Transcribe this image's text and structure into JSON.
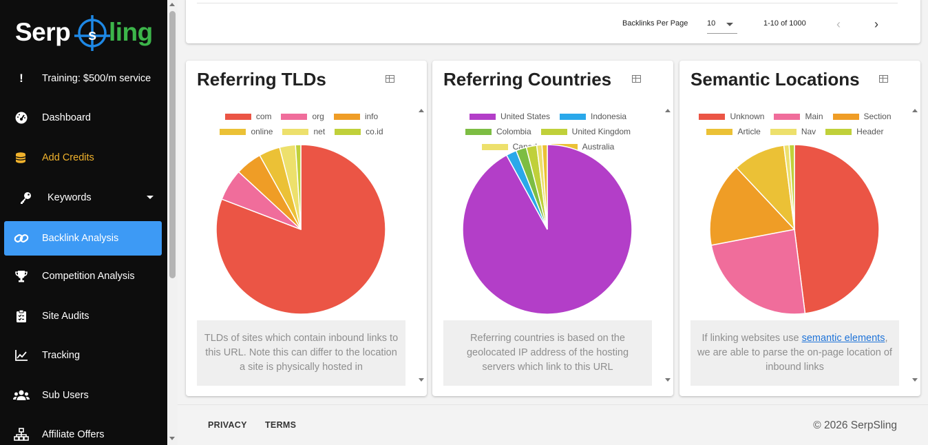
{
  "brand": {
    "logo_left": "Serp",
    "logo_mid": "s",
    "logo_right": "ling",
    "colors": {
      "white": "#ffffff",
      "blue": "#1e88e5",
      "green": "#3cb54a"
    }
  },
  "sidebar": {
    "items": [
      {
        "label": "Training: $500/m service",
        "icon": "exclamation-icon"
      },
      {
        "label": "Dashboard",
        "icon": "speedometer-icon"
      },
      {
        "label": "Add Credits",
        "icon": "coins-icon"
      },
      {
        "label": "Keywords",
        "icon": "key-icon"
      },
      {
        "label": "Backlink Analysis",
        "icon": "link-icon"
      },
      {
        "label": "Competition Analysis",
        "icon": "trophy-icon"
      },
      {
        "label": "Site Audits",
        "icon": "clipboard-icon"
      },
      {
        "label": "Tracking",
        "icon": "line-chart-icon"
      },
      {
        "label": "Sub Users",
        "icon": "users-icon"
      },
      {
        "label": "Affiliate Offers",
        "icon": "sitemap-icon"
      }
    ],
    "active_color": "#3d9af5",
    "credits_color": "#f0b22c"
  },
  "pagination": {
    "per_page_label": "Backlinks Per Page",
    "per_page_value": "10",
    "range_text": "1-10 of 1000",
    "prev_icon": "chevron-left-icon",
    "next_icon": "chevron-right-icon"
  },
  "cards": [
    {
      "title": "Referring TLDs",
      "info": "TLDs of sites which contain inbound links to this URL. Note this can differ to the location a site is physically hosted in",
      "chart_data": {
        "type": "pie",
        "labels": [
          "com",
          "org",
          "info",
          "online",
          "net",
          "co.id"
        ],
        "values": [
          80,
          6,
          5,
          4,
          3,
          1
        ],
        "colors": [
          "#eb5545",
          "#f06d9b",
          "#ef9d26",
          "#ebc136",
          "#ede06c",
          "#c0d03a"
        ],
        "legend_rows": [
          [
            "com",
            "org",
            "info"
          ],
          [
            "online",
            "net",
            "co.id"
          ]
        ]
      }
    },
    {
      "title": "Referring Countries",
      "info": "Referring countries is based on the geolocated IP address of the hosting servers which link to this URL",
      "chart_data": {
        "type": "pie",
        "labels": [
          "United States",
          "Indonesia",
          "Colombia",
          "United Kingdom",
          "Canada",
          "Australia"
        ],
        "values": [
          92,
          2,
          2,
          2,
          1,
          1
        ],
        "colors": [
          "#b33ec8",
          "#2aa8ea",
          "#7dbd43",
          "#c0d03a",
          "#ede06c",
          "#ebc136"
        ],
        "legend_rows": [
          [
            "United States",
            "Indonesia"
          ],
          [
            "Colombia",
            "United Kingdom"
          ],
          [
            "Canada",
            "Australia"
          ]
        ]
      }
    },
    {
      "title": "Semantic Locations",
      "info_prefix": "If linking websites use ",
      "info_link": "semantic elements",
      "info_suffix": ", we are able to parse the on-page location of inbound links",
      "chart_data": {
        "type": "pie",
        "labels": [
          "Unknown",
          "Main",
          "Section",
          "Article",
          "Nav",
          "Header"
        ],
        "values": [
          48,
          24,
          16,
          10,
          1,
          1
        ],
        "colors": [
          "#eb5545",
          "#f06d9b",
          "#ef9d26",
          "#ebc136",
          "#ede06c",
          "#c0d03a"
        ],
        "legend_rows": [
          [
            "Unknown",
            "Main",
            "Section"
          ],
          [
            "Article",
            "Nav",
            "Header"
          ]
        ]
      }
    }
  ],
  "footer": {
    "privacy": "PRIVACY",
    "terms": "TERMS",
    "copyright": "© 2026 SerpSling"
  }
}
